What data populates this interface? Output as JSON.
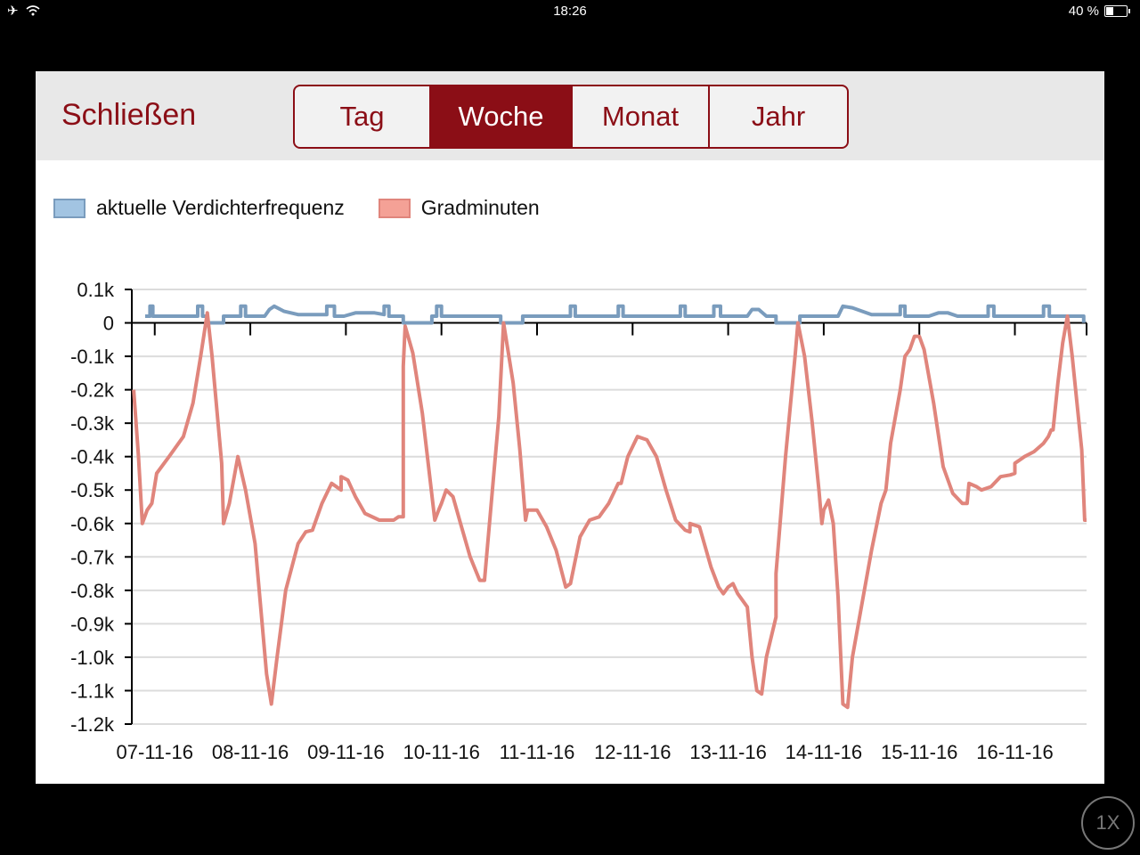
{
  "status_bar": {
    "time": "18:26",
    "battery": "40 %"
  },
  "toolbar": {
    "close_label": "Schließen",
    "segments": [
      "Tag",
      "Woche",
      "Monat",
      "Jahr"
    ],
    "active_segment": "Woche"
  },
  "zoom_label": "1X",
  "colors": {
    "accent": "#8b0e16",
    "series1": "#7a9cbd",
    "series2": "#e0857c"
  },
  "chart_data": {
    "type": "line",
    "legend_placement": "top-left",
    "grid": true,
    "ylim": [
      -1200,
      100
    ],
    "yticks": [
      {
        "value": 100,
        "label": "0.1k"
      },
      {
        "value": 0,
        "label": "0"
      },
      {
        "value": -100,
        "label": "-0.1k"
      },
      {
        "value": -200,
        "label": "-0.2k"
      },
      {
        "value": -300,
        "label": "-0.3k"
      },
      {
        "value": -400,
        "label": "-0.4k"
      },
      {
        "value": -500,
        "label": "-0.5k"
      },
      {
        "value": -600,
        "label": "-0.6k"
      },
      {
        "value": -700,
        "label": "-0.7k"
      },
      {
        "value": -800,
        "label": "-0.8k"
      },
      {
        "value": -900,
        "label": "-0.9k"
      },
      {
        "value": -1000,
        "label": "-1.0k"
      },
      {
        "value": -1100,
        "label": "-1.1k"
      },
      {
        "value": -1200,
        "label": "-1.2k"
      }
    ],
    "xlim": [
      -0.24,
      9.75
    ],
    "xticks": [
      {
        "value": 0,
        "label": "07-11-16"
      },
      {
        "value": 1,
        "label": "08-11-16"
      },
      {
        "value": 2,
        "label": "09-11-16"
      },
      {
        "value": 3,
        "label": "10-11-16"
      },
      {
        "value": 4,
        "label": "11-11-16"
      },
      {
        "value": 5,
        "label": "12-11-16"
      },
      {
        "value": 6,
        "label": "13-11-16"
      },
      {
        "value": 7,
        "label": "14-11-16"
      },
      {
        "value": 8,
        "label": "15-11-16"
      },
      {
        "value": 9,
        "label": "16-11-16"
      }
    ],
    "series": [
      {
        "name": "aktuelle Verdichterfrequenz",
        "color": "#7a9cbd",
        "legend_color": "#a2c4e2",
        "points": [
          [
            -0.1,
            20
          ],
          [
            -0.05,
            20
          ],
          [
            -0.05,
            50
          ],
          [
            -0.02,
            50
          ],
          [
            -0.02,
            20
          ],
          [
            0.45,
            20
          ],
          [
            0.45,
            50
          ],
          [
            0.5,
            50
          ],
          [
            0.5,
            20
          ],
          [
            0.55,
            20
          ],
          [
            0.55,
            0
          ],
          [
            0.72,
            0
          ],
          [
            0.72,
            20
          ],
          [
            0.9,
            20
          ],
          [
            0.9,
            50
          ],
          [
            0.95,
            50
          ],
          [
            0.95,
            20
          ],
          [
            1.15,
            20
          ],
          [
            1.2,
            40
          ],
          [
            1.25,
            50
          ],
          [
            1.35,
            35
          ],
          [
            1.5,
            25
          ],
          [
            1.8,
            25
          ],
          [
            1.8,
            50
          ],
          [
            1.88,
            50
          ],
          [
            1.88,
            20
          ],
          [
            1.98,
            20
          ],
          [
            2.1,
            30
          ],
          [
            2.3,
            30
          ],
          [
            2.4,
            25
          ],
          [
            2.4,
            50
          ],
          [
            2.45,
            50
          ],
          [
            2.45,
            20
          ],
          [
            2.6,
            20
          ],
          [
            2.6,
            0
          ],
          [
            2.9,
            0
          ],
          [
            2.9,
            20
          ],
          [
            2.95,
            20
          ],
          [
            2.95,
            50
          ],
          [
            3.0,
            50
          ],
          [
            3.0,
            20
          ],
          [
            3.62,
            20
          ],
          [
            3.62,
            0
          ],
          [
            3.85,
            0
          ],
          [
            3.85,
            20
          ],
          [
            4.35,
            20
          ],
          [
            4.35,
            50
          ],
          [
            4.4,
            50
          ],
          [
            4.4,
            20
          ],
          [
            4.85,
            20
          ],
          [
            4.85,
            50
          ],
          [
            4.9,
            50
          ],
          [
            4.9,
            20
          ],
          [
            5.5,
            20
          ],
          [
            5.5,
            50
          ],
          [
            5.55,
            50
          ],
          [
            5.55,
            20
          ],
          [
            5.85,
            20
          ],
          [
            5.85,
            50
          ],
          [
            5.92,
            50
          ],
          [
            5.92,
            20
          ],
          [
            6.2,
            20
          ],
          [
            6.25,
            40
          ],
          [
            6.32,
            40
          ],
          [
            6.4,
            20
          ],
          [
            6.5,
            20
          ],
          [
            6.5,
            0
          ],
          [
            6.75,
            0
          ],
          [
            6.75,
            20
          ],
          [
            7.15,
            20
          ],
          [
            7.2,
            50
          ],
          [
            7.3,
            45
          ],
          [
            7.5,
            25
          ],
          [
            7.8,
            25
          ],
          [
            7.8,
            50
          ],
          [
            7.85,
            50
          ],
          [
            7.85,
            20
          ],
          [
            8.1,
            20
          ],
          [
            8.2,
            30
          ],
          [
            8.3,
            30
          ],
          [
            8.4,
            20
          ],
          [
            8.72,
            20
          ],
          [
            8.72,
            50
          ],
          [
            8.78,
            50
          ],
          [
            8.78,
            20
          ],
          [
            9.3,
            20
          ],
          [
            9.3,
            50
          ],
          [
            9.36,
            50
          ],
          [
            9.36,
            20
          ],
          [
            9.72,
            20
          ],
          [
            9.72,
            0
          ]
        ]
      },
      {
        "name": "Gradminuten",
        "color": "#e0857c",
        "legend_color": "#f4a196",
        "points": [
          [
            -0.22,
            -200
          ],
          [
            -0.17,
            -400
          ],
          [
            -0.13,
            -600
          ],
          [
            -0.08,
            -560
          ],
          [
            -0.03,
            -540
          ],
          [
            0.02,
            -450
          ],
          [
            0.15,
            -400
          ],
          [
            0.3,
            -340
          ],
          [
            0.4,
            -240
          ],
          [
            0.48,
            -100
          ],
          [
            0.55,
            30
          ],
          [
            0.6,
            -100
          ],
          [
            0.7,
            -420
          ],
          [
            0.72,
            -600
          ],
          [
            0.78,
            -540
          ],
          [
            0.87,
            -400
          ],
          [
            0.95,
            -500
          ],
          [
            1.05,
            -660
          ],
          [
            1.17,
            -1050
          ],
          [
            1.22,
            -1140
          ],
          [
            1.28,
            -1000
          ],
          [
            1.37,
            -800
          ],
          [
            1.5,
            -660
          ],
          [
            1.58,
            -625
          ],
          [
            1.65,
            -620
          ],
          [
            1.75,
            -540
          ],
          [
            1.85,
            -480
          ],
          [
            1.95,
            -500
          ],
          [
            1.95,
            -460
          ],
          [
            2.02,
            -470
          ],
          [
            2.1,
            -520
          ],
          [
            2.2,
            -570
          ],
          [
            2.35,
            -590
          ],
          [
            2.5,
            -590
          ],
          [
            2.55,
            -580
          ],
          [
            2.6,
            -580
          ],
          [
            2.6,
            -130
          ],
          [
            2.62,
            -10
          ],
          [
            2.7,
            -90
          ],
          [
            2.8,
            -270
          ],
          [
            2.93,
            -590
          ],
          [
            2.97,
            -560
          ],
          [
            3.0,
            -540
          ],
          [
            3.05,
            -500
          ],
          [
            3.12,
            -520
          ],
          [
            3.2,
            -600
          ],
          [
            3.3,
            -700
          ],
          [
            3.4,
            -770
          ],
          [
            3.45,
            -770
          ],
          [
            3.6,
            -280
          ],
          [
            3.65,
            0
          ],
          [
            3.75,
            -180
          ],
          [
            3.82,
            -380
          ],
          [
            3.88,
            -590
          ],
          [
            3.9,
            -560
          ],
          [
            4.0,
            -560
          ],
          [
            4.1,
            -610
          ],
          [
            4.2,
            -680
          ],
          [
            4.3,
            -790
          ],
          [
            4.35,
            -780
          ],
          [
            4.45,
            -640
          ],
          [
            4.55,
            -590
          ],
          [
            4.65,
            -580
          ],
          [
            4.75,
            -540
          ],
          [
            4.85,
            -480
          ],
          [
            4.88,
            -480
          ],
          [
            4.95,
            -400
          ],
          [
            5.05,
            -340
          ],
          [
            5.15,
            -350
          ],
          [
            5.25,
            -400
          ],
          [
            5.35,
            -500
          ],
          [
            5.45,
            -590
          ],
          [
            5.55,
            -620
          ],
          [
            5.6,
            -625
          ],
          [
            5.6,
            -600
          ],
          [
            5.7,
            -610
          ],
          [
            5.82,
            -730
          ],
          [
            5.9,
            -790
          ],
          [
            5.95,
            -810
          ],
          [
            6.0,
            -790
          ],
          [
            6.05,
            -780
          ],
          [
            6.1,
            -810
          ],
          [
            6.2,
            -850
          ],
          [
            6.25,
            -1000
          ],
          [
            6.3,
            -1100
          ],
          [
            6.35,
            -1110
          ],
          [
            6.4,
            -1000
          ],
          [
            6.5,
            -880
          ],
          [
            6.5,
            -750
          ],
          [
            6.6,
            -400
          ],
          [
            6.7,
            -100
          ],
          [
            6.73,
            0
          ],
          [
            6.8,
            -100
          ],
          [
            6.88,
            -300
          ],
          [
            6.95,
            -500
          ],
          [
            6.98,
            -600
          ],
          [
            7.0,
            -560
          ],
          [
            7.05,
            -530
          ],
          [
            7.1,
            -600
          ],
          [
            7.15,
            -820
          ],
          [
            7.2,
            -1140
          ],
          [
            7.25,
            -1150
          ],
          [
            7.3,
            -1000
          ],
          [
            7.4,
            -840
          ],
          [
            7.5,
            -680
          ],
          [
            7.6,
            -540
          ],
          [
            7.65,
            -500
          ],
          [
            7.7,
            -360
          ],
          [
            7.8,
            -200
          ],
          [
            7.85,
            -100
          ],
          [
            7.9,
            -80
          ],
          [
            7.95,
            -40
          ],
          [
            8.0,
            -40
          ],
          [
            8.05,
            -80
          ],
          [
            8.15,
            -240
          ],
          [
            8.25,
            -430
          ],
          [
            8.35,
            -510
          ],
          [
            8.45,
            -540
          ],
          [
            8.5,
            -540
          ],
          [
            8.52,
            -480
          ],
          [
            8.6,
            -490
          ],
          [
            8.65,
            -500
          ],
          [
            8.75,
            -490
          ],
          [
            8.85,
            -460
          ],
          [
            8.95,
            -455
          ],
          [
            9.0,
            -450
          ],
          [
            9.0,
            -420
          ],
          [
            9.1,
            -400
          ],
          [
            9.2,
            -385
          ],
          [
            9.3,
            -360
          ],
          [
            9.35,
            -340
          ],
          [
            9.38,
            -320
          ],
          [
            9.4,
            -320
          ],
          [
            9.45,
            -180
          ],
          [
            9.5,
            -60
          ],
          [
            9.55,
            20
          ],
          [
            9.6,
            -100
          ],
          [
            9.7,
            -380
          ],
          [
            9.73,
            -590
          ],
          [
            9.75,
            -590
          ]
        ]
      }
    ]
  }
}
